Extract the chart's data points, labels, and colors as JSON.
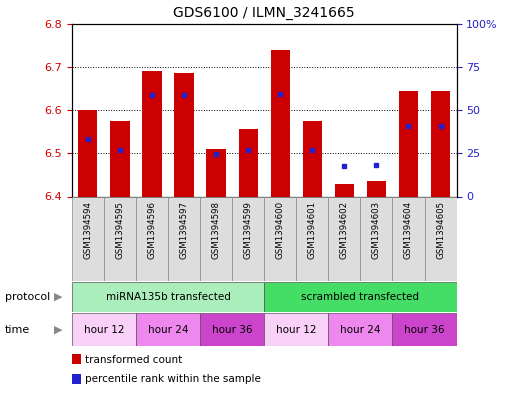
{
  "title": "GDS6100 / ILMN_3241665",
  "samples": [
    "GSM1394594",
    "GSM1394595",
    "GSM1394596",
    "GSM1394597",
    "GSM1394598",
    "GSM1394599",
    "GSM1394600",
    "GSM1394601",
    "GSM1394602",
    "GSM1394603",
    "GSM1394604",
    "GSM1394605"
  ],
  "bar_tops": [
    6.6,
    6.575,
    6.69,
    6.685,
    6.51,
    6.555,
    6.74,
    6.575,
    6.43,
    6.435,
    6.645,
    6.645
  ],
  "bar_bottom": 6.4,
  "percentile_fractions": [
    0.33,
    0.27,
    0.585,
    0.585,
    0.245,
    0.27,
    0.595,
    0.27,
    0.175,
    0.18,
    0.41,
    0.41
  ],
  "ylim": [
    6.4,
    6.8
  ],
  "yticks_left": [
    6.4,
    6.5,
    6.6,
    6.7,
    6.8
  ],
  "yticks_right": [
    0,
    25,
    50,
    75,
    100
  ],
  "bar_color": "#cc0000",
  "dot_color": "#2222cc",
  "protocol_groups": [
    {
      "label": "miRNA135b transfected",
      "start": 0,
      "end": 6,
      "color": "#aaeebb"
    },
    {
      "label": "scrambled transfected",
      "start": 6,
      "end": 12,
      "color": "#44dd66"
    }
  ],
  "time_groups": [
    {
      "label": "hour 12",
      "start": 0,
      "end": 2,
      "color": "#f8d0f8"
    },
    {
      "label": "hour 24",
      "start": 2,
      "end": 4,
      "color": "#ee88ee"
    },
    {
      "label": "hour 36",
      "start": 4,
      "end": 6,
      "color": "#cc44cc"
    },
    {
      "label": "hour 12",
      "start": 6,
      "end": 8,
      "color": "#f8d0f8"
    },
    {
      "label": "hour 24",
      "start": 8,
      "end": 10,
      "color": "#ee88ee"
    },
    {
      "label": "hour 36",
      "start": 10,
      "end": 12,
      "color": "#cc44cc"
    }
  ],
  "sample_bg_color": "#dddddd",
  "legend_items": [
    {
      "label": "transformed count",
      "color": "#cc0000"
    },
    {
      "label": "percentile rank within the sample",
      "color": "#2222cc"
    }
  ],
  "protocol_label": "protocol",
  "time_label": "time",
  "left_axis_color": "#cc0000",
  "right_axis_color": "#2222cc"
}
